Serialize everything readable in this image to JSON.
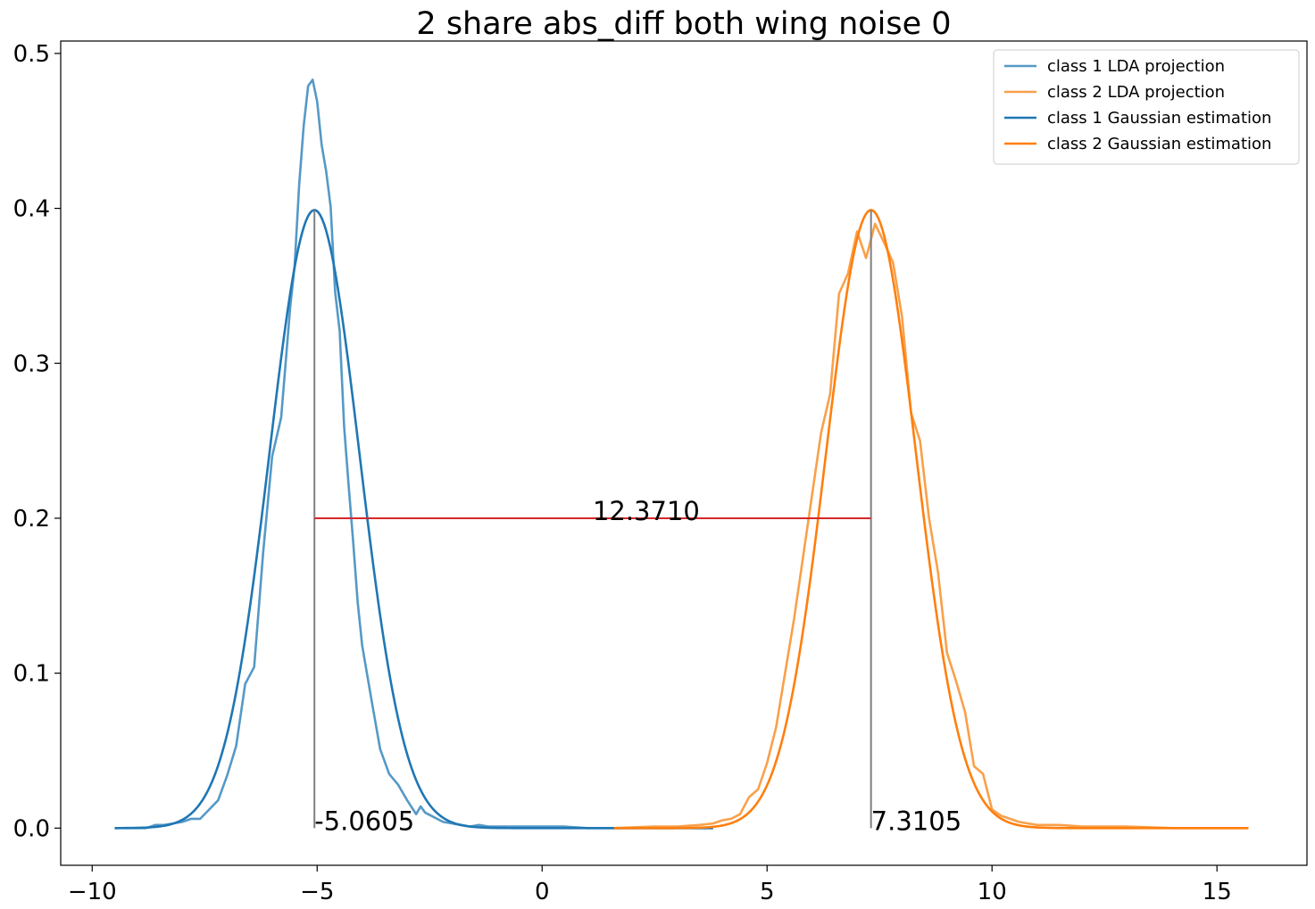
{
  "chart_data": {
    "type": "line",
    "title": "2 share abs_diff both wing noise 0",
    "xlabel": "",
    "ylabel": "",
    "xlim": [
      -10.7,
      17.0
    ],
    "ylim": [
      -0.024,
      0.508
    ],
    "x_ticks": [
      -10,
      -5,
      0,
      5,
      10,
      15
    ],
    "x_tick_labels": [
      "−10",
      "−5",
      "0",
      "5",
      "10",
      "15"
    ],
    "y_ticks": [
      0.0,
      0.1,
      0.2,
      0.3,
      0.4,
      0.5
    ],
    "y_tick_labels": [
      "0.0",
      "0.1",
      "0.2",
      "0.3",
      "0.4",
      "0.5"
    ],
    "grid": false,
    "legend_position": "top-right",
    "colors": {
      "class1_projection": "#5599c7",
      "class2_projection": "#f9a04a",
      "class1_gaussian": "#1f77b4",
      "class2_gaussian": "#ff7f0e",
      "means": "#808080",
      "distance": "#d62728"
    },
    "series": [
      {
        "name": "class 1 LDA projection",
        "color": "#5599c7",
        "x": [
          -9.5,
          -9.0,
          -8.8,
          -8.6,
          -8.4,
          -8.2,
          -8.0,
          -7.8,
          -7.6,
          -7.4,
          -7.2,
          -7.0,
          -6.8,
          -6.6,
          -6.4,
          -6.2,
          -6.0,
          -5.8,
          -5.6,
          -5.5,
          -5.4,
          -5.3,
          -5.2,
          -5.1,
          -5.0,
          -4.9,
          -4.8,
          -4.7,
          -4.6,
          -4.5,
          -4.4,
          -4.3,
          -4.2,
          -4.1,
          -4.0,
          -3.8,
          -3.6,
          -3.4,
          -3.2,
          -3.0,
          -2.8,
          -2.7,
          -2.6,
          -2.4,
          -2.2,
          -2.0,
          -1.8,
          -1.6,
          -1.4,
          -1.2,
          -1.0,
          -0.5,
          0.0,
          0.5,
          1.0,
          1.5,
          2.0,
          2.5,
          3.0,
          3.8
        ],
        "y": [
          0.0,
          0.0,
          0.0,
          0.002,
          0.002,
          0.003,
          0.004,
          0.006,
          0.006,
          0.012,
          0.018,
          0.034,
          0.053,
          0.093,
          0.104,
          0.178,
          0.24,
          0.265,
          0.336,
          0.363,
          0.415,
          0.453,
          0.479,
          0.483,
          0.469,
          0.441,
          0.424,
          0.401,
          0.346,
          0.321,
          0.259,
          0.221,
          0.185,
          0.146,
          0.118,
          0.084,
          0.051,
          0.035,
          0.028,
          0.018,
          0.009,
          0.014,
          0.01,
          0.007,
          0.004,
          0.003,
          0.002,
          0.001,
          0.002,
          0.001,
          0.001,
          0.001,
          0.001,
          0.001,
          0.0,
          0.0,
          0.0,
          0.0,
          0.0,
          0.0
        ]
      },
      {
        "name": "class 2 LDA projection",
        "color": "#f9a04a",
        "x": [
          1.6,
          2.5,
          3.0,
          3.5,
          3.8,
          4.0,
          4.2,
          4.4,
          4.6,
          4.8,
          5.0,
          5.2,
          5.4,
          5.6,
          5.8,
          6.0,
          6.2,
          6.4,
          6.6,
          6.8,
          7.0,
          7.2,
          7.4,
          7.6,
          7.8,
          8.0,
          8.2,
          8.4,
          8.6,
          8.8,
          9.0,
          9.2,
          9.4,
          9.6,
          9.8,
          10.0,
          10.2,
          10.4,
          10.6,
          10.8,
          11.0,
          11.5,
          12.0,
          12.5,
          13.0,
          14.0,
          15.7
        ],
        "y": [
          0.0,
          0.001,
          0.001,
          0.002,
          0.003,
          0.005,
          0.006,
          0.009,
          0.02,
          0.025,
          0.042,
          0.065,
          0.1,
          0.135,
          0.175,
          0.215,
          0.255,
          0.28,
          0.345,
          0.358,
          0.385,
          0.368,
          0.39,
          0.378,
          0.365,
          0.33,
          0.268,
          0.25,
          0.2,
          0.165,
          0.113,
          0.095,
          0.075,
          0.04,
          0.035,
          0.012,
          0.008,
          0.006,
          0.004,
          0.003,
          0.002,
          0.002,
          0.001,
          0.001,
          0.001,
          0.0,
          0.0
        ]
      },
      {
        "name": "class 1 Gaussian estimation",
        "color": "#1f77b4",
        "mean": -5.0605,
        "std": 1.0,
        "x_range": [
          -9.5,
          3.8
        ]
      },
      {
        "name": "class 2 Gaussian estimation",
        "color": "#ff7f0e",
        "mean": 7.3105,
        "std": 1.0,
        "x_range": [
          1.6,
          15.7
        ]
      }
    ],
    "annotations": [
      {
        "kind": "vline",
        "x": -5.0605,
        "y_from": 0.0,
        "y_to": 0.3989,
        "color": "#808080"
      },
      {
        "kind": "vline",
        "x": 7.3105,
        "y_from": 0.0,
        "y_to": 0.3989,
        "color": "#808080"
      },
      {
        "kind": "hline",
        "y": 0.2,
        "x_from": -5.0605,
        "x_to": 7.3105,
        "color": "#d62728"
      },
      {
        "kind": "text",
        "text": "-5.0605",
        "x": -5.0605,
        "y": 0.0
      },
      {
        "kind": "text",
        "text": "7.3105",
        "x": 7.3105,
        "y": 0.0
      },
      {
        "kind": "text",
        "text": "12.3710",
        "x": 1.125,
        "y": 0.2
      }
    ]
  }
}
